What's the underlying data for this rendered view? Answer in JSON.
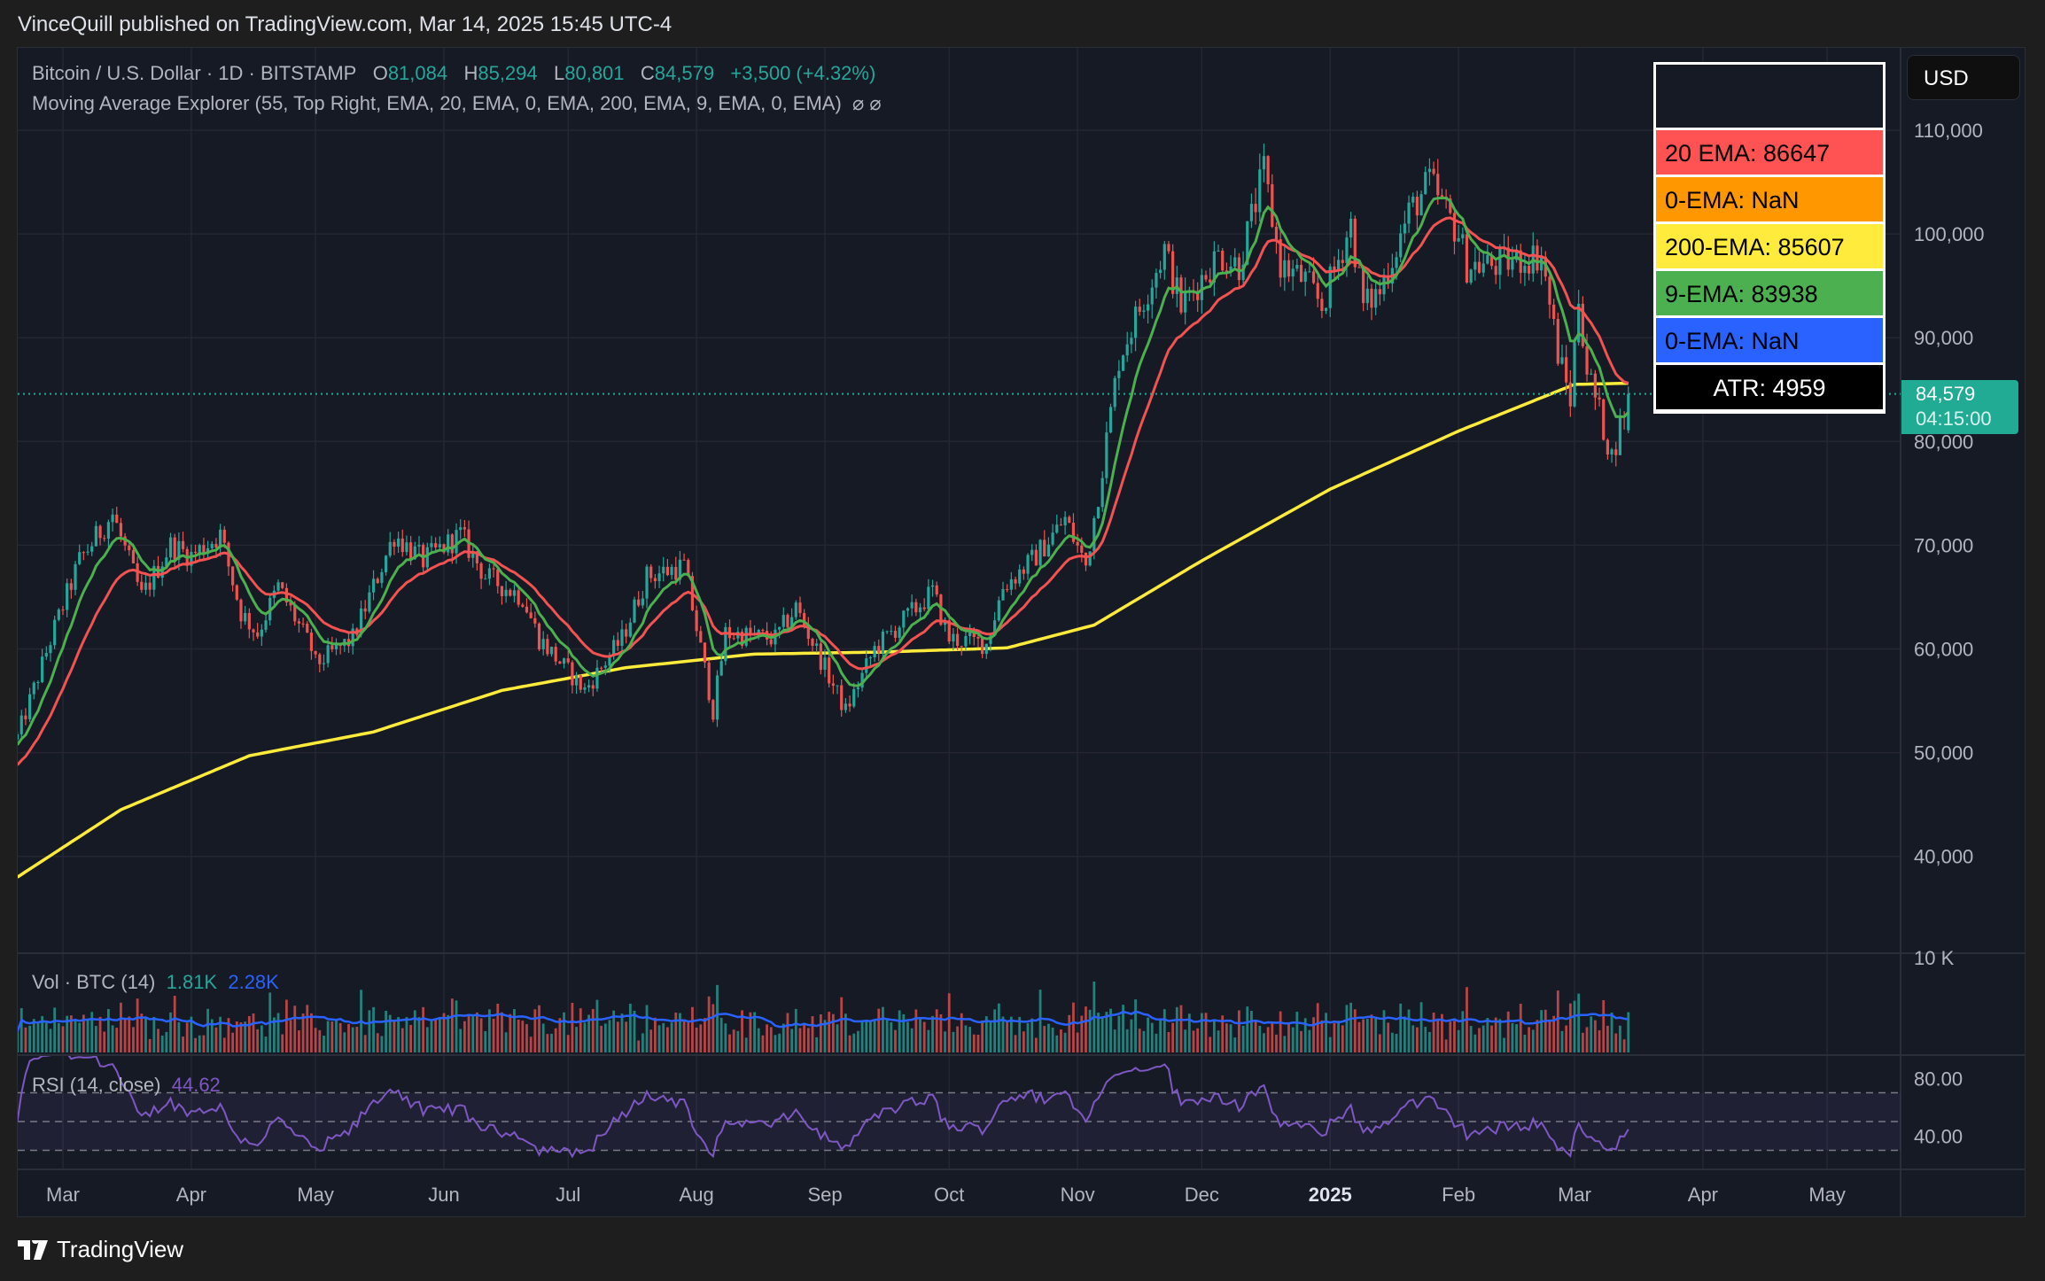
{
  "header": {
    "published": "VinceQuill published on TradingView.com, Mar 14, 2025 15:45 UTC-4"
  },
  "symbol": {
    "title": "Bitcoin / U.S. Dollar · 1D · BITSTAMP",
    "o_label": "O",
    "o": "81,084",
    "h_label": "H",
    "h": "85,294",
    "l_label": "L",
    "l": "80,801",
    "c_label": "C",
    "c": "84,579",
    "change": "+3,500 (+4.32%)"
  },
  "indicator": {
    "label": "Moving Average Explorer (55, Top Right, EMA, 20, EMA, 0, EMA, 200, EMA, 9, EMA, 0, EMA)",
    "icons": "⌀  ⌀"
  },
  "ma_legend": {
    "rows": [
      {
        "text": "20 EMA: 86647",
        "color": "#ff5252"
      },
      {
        "text": "0-EMA: NaN",
        "color": "#ff9800"
      },
      {
        "text": "200-EMA: 85607",
        "color": "#ffeb3b"
      },
      {
        "text": "9-EMA: 83938",
        "color": "#4caf50"
      },
      {
        "text": "0-EMA: NaN",
        "color": "#2962ff"
      }
    ],
    "atr": "ATR: 4959"
  },
  "price_axis": {
    "currency": "USD",
    "ticks": [
      "110,000",
      "100,000",
      "90,000",
      "80,000",
      "70,000",
      "60,000",
      "50,000",
      "40,000"
    ],
    "current_price": "84,579",
    "countdown": "04:15:00",
    "volume_tick": "10 K"
  },
  "volume": {
    "label": "Vol · BTC (14)",
    "value": "1.81K",
    "ma_value": "2.28K"
  },
  "rsi": {
    "label": "RSI (14, close)",
    "value": "44.62",
    "ticks": [
      "80.00",
      "40.00"
    ]
  },
  "time_axis": [
    {
      "label": "Mar",
      "date": "2024-03-01"
    },
    {
      "label": "Apr",
      "date": "2024-04-01"
    },
    {
      "label": "May",
      "date": "2024-05-01"
    },
    {
      "label": "Jun",
      "date": "2024-06-01"
    },
    {
      "label": "Jul",
      "date": "2024-07-01"
    },
    {
      "label": "Aug",
      "date": "2024-08-01"
    },
    {
      "label": "Sep",
      "date": "2024-09-01"
    },
    {
      "label": "Oct",
      "date": "2024-10-01"
    },
    {
      "label": "Nov",
      "date": "2024-11-01"
    },
    {
      "label": "Dec",
      "date": "2024-12-01"
    },
    {
      "label": "2025",
      "date": "2025-01-01"
    },
    {
      "label": "Feb",
      "date": "2025-02-01"
    },
    {
      "label": "Mar",
      "date": "2025-03-01"
    },
    {
      "label": "Apr",
      "date": "2025-04-01"
    },
    {
      "label": "May",
      "date": "2025-05-01"
    }
  ],
  "colors": {
    "up": "#26a69a",
    "down": "#ef5350",
    "ema20": "#f25352",
    "ema9": "#4caf50",
    "ema200": "#ffeb3b",
    "vol_ma": "#2962ff",
    "rsi": "#7e57c2",
    "price_tag": "#22ab94"
  },
  "logo": {
    "text": "TradingView"
  },
  "chart_data": {
    "type": "candlestick",
    "symbol": "BTCUSD",
    "interval": "1D",
    "ylim": [
      30000,
      118000
    ],
    "price_ticks": [
      40000,
      50000,
      60000,
      70000,
      80000,
      90000,
      100000,
      110000
    ],
    "last_candle": {
      "date": "2025-03-14",
      "open": 81084,
      "high": 85294,
      "low": 80801,
      "close": 84579
    },
    "close_keypoints": [
      [
        "2024-02-19",
        51500
      ],
      [
        "2024-02-28",
        62000
      ],
      [
        "2024-03-05",
        68500
      ],
      [
        "2024-03-13",
        73000
      ],
      [
        "2024-03-20",
        65000
      ],
      [
        "2024-03-27",
        70000
      ],
      [
        "2024-04-01",
        69000
      ],
      [
        "2024-04-08",
        71000
      ],
      [
        "2024-04-13",
        63500
      ],
      [
        "2024-04-17",
        61500
      ],
      [
        "2024-04-22",
        66000
      ],
      [
        "2024-04-30",
        60000
      ],
      [
        "2024-05-01",
        58500
      ],
      [
        "2024-05-10",
        61000
      ],
      [
        "2024-05-15",
        66000
      ],
      [
        "2024-05-20",
        71000
      ],
      [
        "2024-05-27",
        68500
      ],
      [
        "2024-06-05",
        71000
      ],
      [
        "2024-06-11",
        67000
      ],
      [
        "2024-06-20",
        65000
      ],
      [
        "2024-06-24",
        61000
      ],
      [
        "2024-07-05",
        56000
      ],
      [
        "2024-07-14",
        61000
      ],
      [
        "2024-07-20",
        67000
      ],
      [
        "2024-07-29",
        68000
      ],
      [
        "2024-08-05",
        54000
      ],
      [
        "2024-08-08",
        61500
      ],
      [
        "2024-08-20",
        61000
      ],
      [
        "2024-08-25",
        64000
      ],
      [
        "2024-09-06",
        54000
      ],
      [
        "2024-09-13",
        60000
      ],
      [
        "2024-09-27",
        65500
      ],
      [
        "2024-10-01",
        61000
      ],
      [
        "2024-10-10",
        60500
      ],
      [
        "2024-10-14",
        66000
      ],
      [
        "2024-10-21",
        68500
      ],
      [
        "2024-10-29",
        72500
      ],
      [
        "2024-11-03",
        68000
      ],
      [
        "2024-11-06",
        75000
      ],
      [
        "2024-11-11",
        88000
      ],
      [
        "2024-11-13",
        90000
      ],
      [
        "2024-11-22",
        98500
      ],
      [
        "2024-11-26",
        93000
      ],
      [
        "2024-12-05",
        98000
      ],
      [
        "2024-12-10",
        97000
      ],
      [
        "2024-12-16",
        106000
      ],
      [
        "2024-12-20",
        97000
      ],
      [
        "2024-12-26",
        95500
      ],
      [
        "2024-12-30",
        93000
      ],
      [
        "2025-01-06",
        101000
      ],
      [
        "2025-01-09",
        93000
      ],
      [
        "2025-01-13",
        94500
      ],
      [
        "2025-01-20",
        102000
      ],
      [
        "2025-01-25",
        105000
      ],
      [
        "2025-02-01",
        100000
      ],
      [
        "2025-02-03",
        97000
      ],
      [
        "2025-02-10",
        97000
      ],
      [
        "2025-02-21",
        98000
      ],
      [
        "2025-02-25",
        88500
      ],
      [
        "2025-02-28",
        84000
      ],
      [
        "2025-03-02",
        94000
      ],
      [
        "2025-03-04",
        87000
      ],
      [
        "2025-03-10",
        78500
      ],
      [
        "2025-03-14",
        84579
      ]
    ],
    "ema200_keypoints": [
      [
        "2024-02-19",
        38000
      ],
      [
        "2024-03-15",
        44500
      ],
      [
        "2024-04-15",
        49700
      ],
      [
        "2024-05-15",
        52000
      ],
      [
        "2024-06-15",
        56000
      ],
      [
        "2024-07-15",
        58200
      ],
      [
        "2024-08-15",
        59500
      ],
      [
        "2024-09-15",
        59700
      ],
      [
        "2024-10-15",
        60100
      ],
      [
        "2024-11-05",
        62300
      ],
      [
        "2024-12-01",
        68500
      ],
      [
        "2025-01-01",
        75400
      ],
      [
        "2025-02-01",
        81000
      ],
      [
        "2025-03-01",
        85500
      ],
      [
        "2025-03-14",
        85607
      ]
    ],
    "rsi_levels": [
      70,
      50,
      30
    ]
  }
}
